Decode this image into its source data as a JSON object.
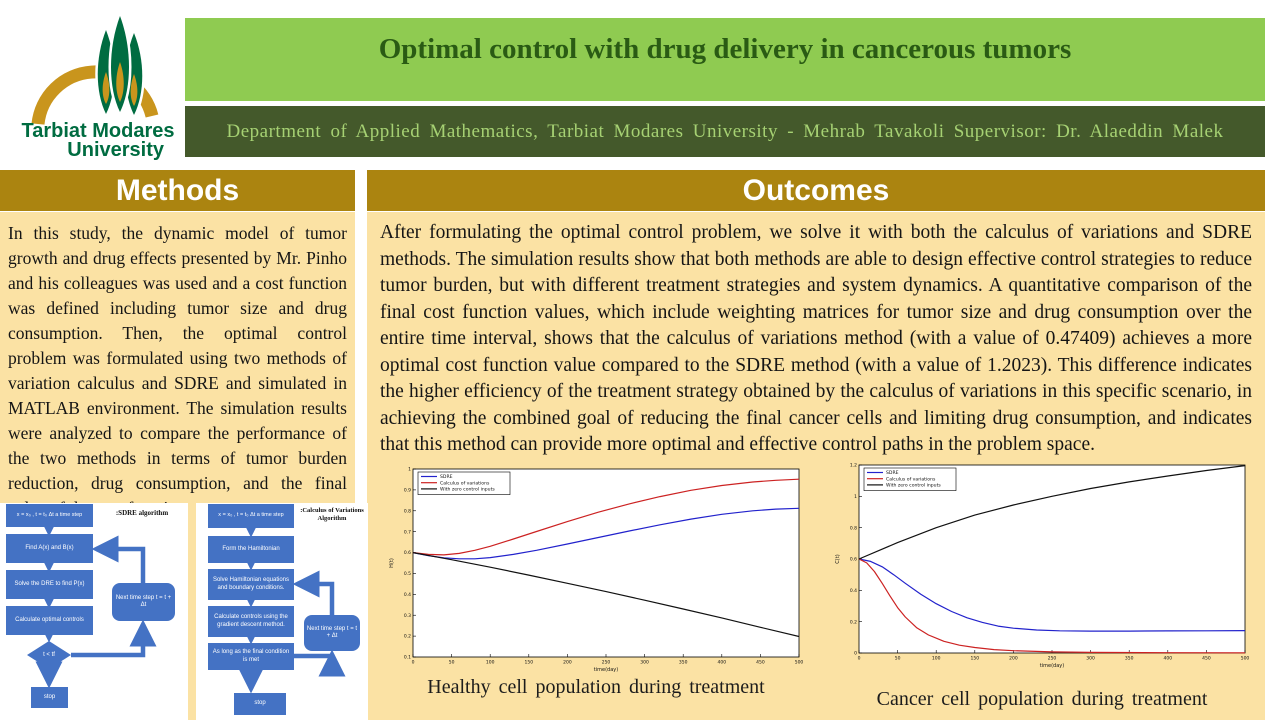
{
  "logo": {
    "line1": "Tarbiat Modares",
    "line2": "University",
    "tree_green": "#006c41",
    "arch_gold": "#c9951d"
  },
  "header": {
    "title": "Optimal control with drug delivery in cancerous tumors",
    "subtitle": "Department  of Applied  Mathematics,  Tarbiat  Modares  University  - Mehrab  Tavakoli  Supervisor:  Dr. Alaeddin  Malek",
    "title_bg": "#8fcb51",
    "title_color": "#2a5b14",
    "subtitle_bg": "#44592b",
    "subtitle_color": "#a6d173"
  },
  "sections": {
    "methods": {
      "title": "Methods",
      "header_bg": "#ab8410",
      "body_bg": "#fbe2a4",
      "text": "In this study, the dynamic model of tumor growth and drug effects presented by Mr. Pinho and his colleagues was used and a cost function was defined including tumor size and drug consumption. Then, the optimal control problem was formulated using two methods of variation calculus and SDRE and simulated in MATLAB environment. The simulation results were analyzed to compare the performance of the two methods in terms of tumor burden reduction, drug consumption, and the final value of the cost function."
    },
    "outcomes": {
      "title": "Outcomes",
      "text": "After formulating the optimal control problem, we solve it with both the calculus of variations and SDRE methods. The simulation results show that both methods are able to design effective control strategies to reduce tumor burden, but with different treatment strategies and system dynamics. A quantitative comparison of the final cost function values, which include weighting matrices for tumor size and drug consumption over the entire time interval, shows that the calculus of variations method (with a value of 0.47409) achieves a more optimal cost function value compared to the SDRE method (with a value of 1.2023). This difference indicates the higher efficiency of the treatment strategy obtained by the calculus of variations in this specific scenario, in achieving the combined goal of reducing the final cancer cells and limiting drug consumption, and indicates that this method can provide more optimal and effective control paths in the problem space."
    }
  },
  "flowcharts": {
    "box_color": "#4472c4",
    "sdre": {
      "title": ":SDRE algorithm",
      "init": "x = x₀ , t = t₀  Δt a time step",
      "find": "Find A(x) and B(x)",
      "solve": "Solve the DRE to find P(x)",
      "calc": "Calculate optimal controls",
      "next": "Next time step t = t + Δt",
      "cond": "t < tf",
      "stop": "stop"
    },
    "cov": {
      "title": ":Calculus of Variations Algorithm",
      "init": "x = x₀ , t = t₀  Δt a time step",
      "form": "Form the Hamiltonian",
      "solve": "Solve Hamiltonian equations and boundary conditions.",
      "calc": "Calculate controls using the gradient descent method.",
      "cond": "As long as the final condition is met",
      "next": "Next time step t = t + Δt",
      "stop": "stop"
    }
  },
  "chart_data": [
    {
      "type": "line",
      "title": "",
      "caption": "Healthy  cell  population  during  treatment",
      "xlabel": "time(day)",
      "ylabel": "H(t)",
      "xlim": [
        0,
        500
      ],
      "ylim": [
        0.1,
        1.0
      ],
      "xticks": [
        0,
        50,
        100,
        150,
        200,
        250,
        300,
        350,
        400,
        450,
        500
      ],
      "yticks": [
        0.1,
        0.2,
        0.3,
        0.4,
        0.5,
        0.6,
        0.7,
        0.8,
        0.9,
        1
      ],
      "grid": false,
      "legend_position": "top-left",
      "series": [
        {
          "name": "SDRE",
          "color": "#2222cc",
          "x": [
            0,
            20,
            40,
            60,
            80,
            100,
            130,
            160,
            200,
            240,
            280,
            320,
            360,
            400,
            440,
            470,
            500
          ],
          "y": [
            0.6,
            0.585,
            0.575,
            0.57,
            0.57,
            0.576,
            0.591,
            0.611,
            0.641,
            0.672,
            0.703,
            0.733,
            0.76,
            0.783,
            0.8,
            0.808,
            0.812
          ]
        },
        {
          "name": "Calculus of variations",
          "color": "#cc2222",
          "x": [
            0,
            20,
            40,
            60,
            80,
            100,
            130,
            160,
            200,
            240,
            280,
            320,
            360,
            400,
            440,
            470,
            500
          ],
          "y": [
            0.6,
            0.591,
            0.589,
            0.596,
            0.611,
            0.63,
            0.665,
            0.701,
            0.748,
            0.793,
            0.833,
            0.868,
            0.898,
            0.921,
            0.938,
            0.946,
            0.951
          ]
        },
        {
          "name": "With zero control inputs",
          "color": "#111111",
          "x": [
            0,
            50,
            100,
            150,
            200,
            250,
            300,
            350,
            400,
            450,
            500
          ],
          "y": [
            0.6,
            0.566,
            0.53,
            0.492,
            0.453,
            0.413,
            0.372,
            0.33,
            0.287,
            0.242,
            0.198
          ]
        }
      ]
    },
    {
      "type": "line",
      "title": "",
      "caption": "Cancer cell population during treatment",
      "xlabel": "time(day)",
      "ylabel": "C(t)",
      "xlim": [
        0,
        500
      ],
      "ylim": [
        0,
        1.2
      ],
      "xticks": [
        0,
        50,
        100,
        150,
        200,
        250,
        300,
        350,
        400,
        450,
        500
      ],
      "yticks": [
        0,
        0.2,
        0.4,
        0.6,
        0.8,
        1,
        1.2
      ],
      "grid": false,
      "legend_position": "top-left",
      "series": [
        {
          "name": "SDRE",
          "color": "#2222cc",
          "x": [
            0,
            15,
            30,
            45,
            60,
            80,
            100,
            120,
            140,
            160,
            180,
            200,
            230,
            260,
            300,
            350,
            400,
            450,
            500
          ],
          "y": [
            0.6,
            0.585,
            0.55,
            0.5,
            0.445,
            0.375,
            0.315,
            0.265,
            0.225,
            0.195,
            0.172,
            0.158,
            0.147,
            0.142,
            0.14,
            0.14,
            0.141,
            0.142,
            0.143
          ]
        },
        {
          "name": "Calculus of variations",
          "color": "#cc2222",
          "x": [
            0,
            10,
            20,
            30,
            40,
            50,
            60,
            75,
            90,
            110,
            130,
            150,
            175,
            200,
            250,
            300,
            400,
            500
          ],
          "y": [
            0.6,
            0.575,
            0.52,
            0.445,
            0.365,
            0.29,
            0.23,
            0.16,
            0.115,
            0.075,
            0.05,
            0.035,
            0.022,
            0.015,
            0.007,
            0.004,
            0.002,
            0.001
          ]
        },
        {
          "name": "With zero control inputs",
          "color": "#111111",
          "x": [
            0,
            50,
            100,
            150,
            200,
            250,
            300,
            350,
            400,
            450,
            500
          ],
          "y": [
            0.6,
            0.705,
            0.8,
            0.88,
            0.945,
            1.0,
            1.05,
            1.092,
            1.13,
            1.165,
            1.196
          ]
        }
      ]
    }
  ]
}
